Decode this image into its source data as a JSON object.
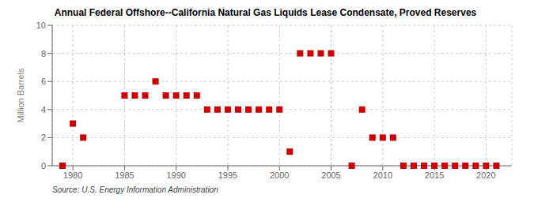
{
  "chart_data": {
    "type": "scatter",
    "title": "Annual Federal Offshore--California Natural Gas Liquids Lease Condensate, Proved Reserves",
    "y_label": "Million Barrels",
    "annotations": [
      "Source: U.S. Energy Information Administration"
    ],
    "color": "#cc0000",
    "marker": "square",
    "grid": true,
    "xlim": [
      1978,
      2022.5
    ],
    "ylim": [
      0,
      10
    ],
    "xticks": [
      1980,
      1985,
      1990,
      1995,
      2000,
      2005,
      2010,
      2015,
      2020
    ],
    "yticks": [
      0,
      2,
      4,
      6,
      8,
      10
    ],
    "x": [
      1979,
      1980,
      1981,
      1985,
      1986,
      1987,
      1988,
      1989,
      1990,
      1991,
      1992,
      1993,
      1994,
      1995,
      1996,
      1997,
      1998,
      1999,
      2000,
      2001,
      2002,
      2003,
      2004,
      2005,
      2007,
      2008,
      2009,
      2010,
      2011,
      2012,
      2013,
      2014,
      2015,
      2016,
      2017,
      2018,
      2019,
      2020,
      2021
    ],
    "values": [
      0.0,
      3.0,
      2.0,
      5.0,
      5.0,
      5.0,
      6.0,
      5.0,
      5.0,
      5.0,
      5.0,
      4.0,
      4.0,
      4.0,
      4.0,
      4.0,
      4.0,
      4.0,
      4.0,
      1.0,
      8.0,
      8.0,
      8.0,
      8.0,
      0.0,
      4.0,
      2.0,
      2.0,
      2.0,
      0.0,
      0.0,
      0.0,
      0.0,
      0.0,
      0.0,
      0.0,
      0.0,
      0.0,
      0.0
    ]
  }
}
